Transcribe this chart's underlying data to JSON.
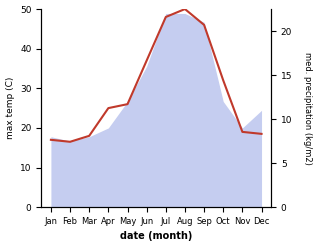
{
  "months": [
    "Jan",
    "Feb",
    "Mar",
    "Apr",
    "May",
    "Jun",
    "Jul",
    "Aug",
    "Sep",
    "Oct",
    "Nov",
    "Dec"
  ],
  "x_positions": [
    0,
    1,
    2,
    3,
    4,
    5,
    6,
    7,
    8,
    9,
    10,
    11
  ],
  "temperature": [
    17,
    16.5,
    18,
    25,
    26,
    37,
    48,
    50,
    46,
    32,
    19,
    18.5
  ],
  "precipitation": [
    8,
    7.5,
    8,
    9,
    12,
    16,
    22,
    22,
    21,
    12,
    9,
    11
  ],
  "temp_color": "#c0392b",
  "precip_fill_color": "#c5cdf0",
  "precip_line_color": "#c5cdf0",
  "temp_ylim": [
    0,
    50
  ],
  "precip_ylim": [
    0,
    22.5
  ],
  "temp_yticks": [
    0,
    10,
    20,
    30,
    40,
    50
  ],
  "precip_yticks": [
    0,
    5,
    10,
    15,
    20
  ],
  "xlabel": "date (month)",
  "ylabel_left": "max temp (C)",
  "ylabel_right": "med. precipitation (kg/m2)",
  "fig_width": 3.18,
  "fig_height": 2.47,
  "dpi": 100
}
